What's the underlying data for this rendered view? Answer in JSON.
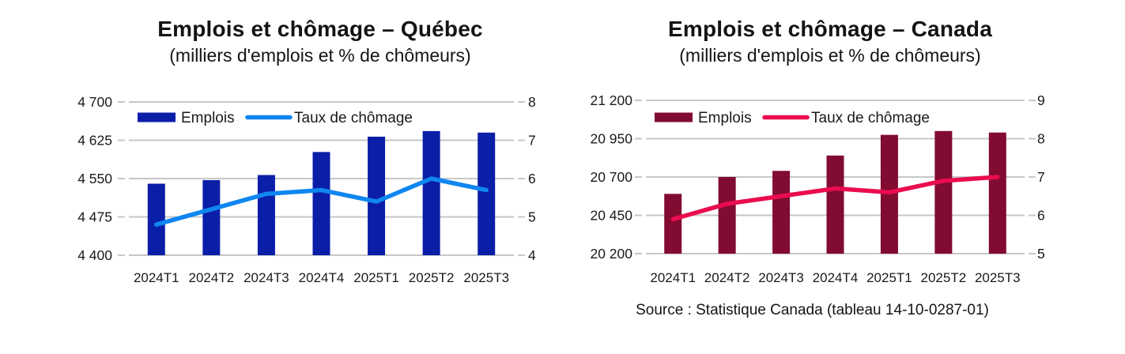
{
  "chart_data": [
    {
      "id": "quebec",
      "type": "bar+line",
      "title": "Emplois et chômage – Québec",
      "subtitle": "(milliers d'emplois et % de chômeurs)",
      "legend": {
        "bars_label": "Emplois",
        "line_label": "Taux de chômage",
        "position": "top-inside"
      },
      "colors": {
        "bars": "#0B1EA8",
        "line": "#0F86F0",
        "gridline": "#C7C7C7",
        "text": "#1a1a1a"
      },
      "categories": [
        "2024T1",
        "2024T2",
        "2024T3",
        "2024T4",
        "2025T1",
        "2025T2",
        "2025T3"
      ],
      "left_axis": {
        "label": "milliers d'emplois",
        "min": 4400,
        "max": 4700,
        "ticks": [
          "4 700",
          "4 625",
          "4 550",
          "4 475",
          "4 400"
        ]
      },
      "right_axis": {
        "label": "% de chômeurs",
        "min": 4,
        "max": 8,
        "ticks": [
          "8",
          "7",
          "6",
          "5",
          "4"
        ]
      },
      "series": [
        {
          "name": "Emplois",
          "type": "bar",
          "axis": "left",
          "values": [
            4540,
            4547,
            4557,
            4602,
            4632,
            4643,
            4640
          ]
        },
        {
          "name": "Taux de chômage",
          "type": "line",
          "axis": "right",
          "values": [
            4.8,
            5.2,
            5.6,
            5.7,
            5.4,
            6.0,
            5.7
          ]
        }
      ],
      "grid": true
    },
    {
      "id": "canada",
      "type": "bar+line",
      "title": "Emplois et chômage – Canada",
      "subtitle": "(milliers d'emplois et % de chômeurs)",
      "legend": {
        "bars_label": "Emplois",
        "line_label": "Taux de chômage",
        "position": "top-inside"
      },
      "colors": {
        "bars": "#820B31",
        "line": "#EA0C4F",
        "gridline": "#C7C7C7",
        "text": "#1a1a1a"
      },
      "categories": [
        "2024T1",
        "2024T2",
        "2024T3",
        "2024T4",
        "2025T1",
        "2025T2",
        "2025T3"
      ],
      "left_axis": {
        "label": "milliers d'emplois",
        "min": 20200,
        "max": 21200,
        "ticks": [
          "21 200",
          "20 950",
          "20 700",
          "20 450",
          "20 200"
        ]
      },
      "right_axis": {
        "label": "% de chômeurs",
        "min": 5,
        "max": 9,
        "ticks": [
          "9",
          "8",
          "7",
          "6",
          "5"
        ]
      },
      "series": [
        {
          "name": "Emplois",
          "type": "bar",
          "axis": "left",
          "values": [
            20590,
            20700,
            20740,
            20840,
            20975,
            21000,
            20990
          ]
        },
        {
          "name": "Taux de chômage",
          "type": "line",
          "axis": "right",
          "values": [
            5.9,
            6.3,
            6.5,
            6.7,
            6.6,
            6.9,
            7.0
          ]
        }
      ],
      "grid": true,
      "source": "Source : Statistique Canada (tableau 14-10-0287-01)"
    }
  ]
}
